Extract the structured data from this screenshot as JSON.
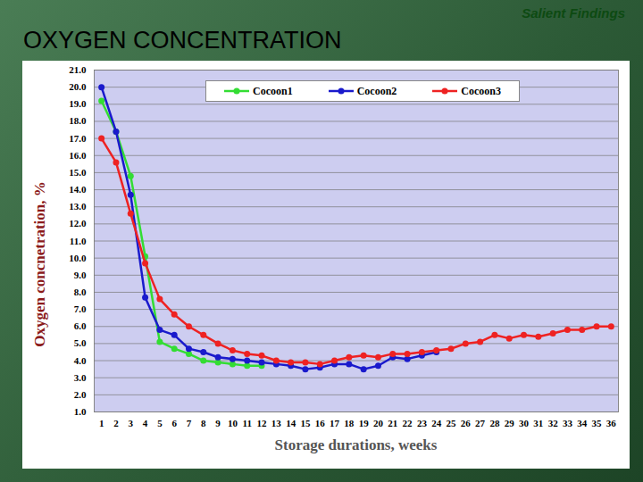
{
  "chart_data": {
    "type": "line",
    "title": "OXYGEN CONCENTRATION",
    "annotations": [
      "Salient Findings"
    ],
    "x_label": "Storage durations, weeks",
    "y_label": "Oxygen concnetration, %",
    "x": [
      1,
      2,
      3,
      4,
      5,
      6,
      7,
      8,
      9,
      10,
      11,
      12,
      13,
      14,
      15,
      16,
      17,
      18,
      19,
      20,
      21,
      22,
      23,
      24,
      25,
      26,
      27,
      28,
      29,
      30,
      31,
      32,
      33,
      34,
      35,
      36
    ],
    "series": [
      {
        "name": "Cocoon1",
        "color": "#33dd33",
        "marker": "circle",
        "values": [
          19.2,
          17.4,
          14.8,
          10.1,
          5.1,
          4.7,
          4.4,
          4.0,
          3.9,
          3.8,
          3.7,
          3.7,
          null,
          null,
          null,
          null,
          null,
          null,
          null,
          null,
          null,
          null,
          null,
          null,
          null,
          null,
          null,
          null,
          null,
          null,
          null,
          null,
          null,
          null,
          null,
          null
        ]
      },
      {
        "name": "Cocoon2",
        "color": "#1a1acc",
        "marker": "circle",
        "values": [
          20.0,
          17.4,
          13.7,
          7.7,
          5.8,
          5.5,
          4.7,
          4.5,
          4.2,
          4.1,
          4.0,
          3.9,
          3.8,
          3.7,
          3.5,
          3.6,
          3.8,
          3.8,
          3.5,
          3.7,
          4.2,
          4.1,
          4.3,
          4.5,
          null,
          null,
          null,
          null,
          null,
          null,
          null,
          null,
          null,
          null,
          null,
          null
        ]
      },
      {
        "name": "Cocoon3",
        "color": "#ee2222",
        "marker": "circle",
        "values": [
          17.0,
          15.6,
          12.6,
          9.7,
          7.6,
          6.7,
          6.0,
          5.5,
          5.0,
          4.6,
          4.4,
          4.3,
          4.0,
          3.9,
          3.9,
          3.8,
          4.0,
          4.2,
          4.3,
          4.2,
          4.4,
          4.4,
          4.5,
          4.6,
          4.7,
          5.0,
          5.1,
          5.5,
          5.3,
          5.5,
          5.4,
          5.6,
          5.8,
          5.8,
          6.0,
          6.0
        ]
      }
    ],
    "xlim": [
      0.5,
      36.5
    ],
    "xticks": [
      1,
      2,
      3,
      4,
      5,
      6,
      7,
      8,
      9,
      10,
      11,
      12,
      13,
      14,
      15,
      16,
      17,
      18,
      19,
      20,
      21,
      22,
      23,
      24,
      25,
      26,
      27,
      28,
      29,
      30,
      31,
      32,
      33,
      34,
      35,
      36
    ],
    "ylim": [
      1,
      21
    ],
    "yticks": [
      {
        "value": 1,
        "label": "1.0"
      },
      {
        "value": 2,
        "label": "2.0"
      },
      {
        "value": 3,
        "label": "3.0"
      },
      {
        "value": 4,
        "label": "4.0"
      },
      {
        "value": 5,
        "label": "5.0"
      },
      {
        "value": 6,
        "label": "6.0"
      },
      {
        "value": 7,
        "label": "7.0"
      },
      {
        "value": 8,
        "label": "8.0"
      },
      {
        "value": 9,
        "label": "9.0"
      },
      {
        "value": 10,
        "label": "10.0"
      },
      {
        "value": 11,
        "label": "11.0"
      },
      {
        "value": 12,
        "label": "12.0"
      },
      {
        "value": 13,
        "label": "13.0"
      },
      {
        "value": 14,
        "label": "14.0"
      },
      {
        "value": 15,
        "label": "15.0"
      },
      {
        "value": 16,
        "label": "16.0"
      },
      {
        "value": 17,
        "label": "17.0"
      },
      {
        "value": 18,
        "label": "18.0"
      },
      {
        "value": 19,
        "label": "19.0"
      },
      {
        "value": 20,
        "label": "20.0"
      },
      {
        "value": 21,
        "label": "21.0"
      }
    ],
    "grid": true,
    "legend": "top"
  }
}
